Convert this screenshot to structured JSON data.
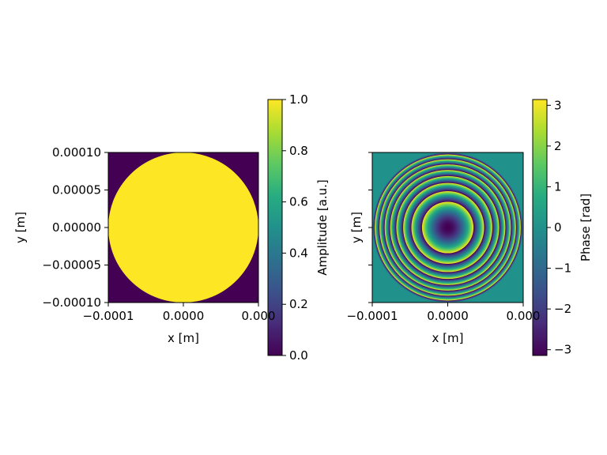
{
  "chart_data": [
    {
      "type": "heatmap",
      "title": "",
      "xlabel": "x [m]",
      "ylabel": "y [m]",
      "xlim": [
        -0.0001,
        0.0001
      ],
      "ylim": [
        -0.0001,
        0.0001
      ],
      "x_ticks": [
        {
          "value": -0.0001,
          "label": "−0.0001"
        },
        {
          "value": 0.0,
          "label": "0.0000"
        },
        {
          "value": 0.0001,
          "label": "0.000"
        }
      ],
      "y_ticks": [
        {
          "value": -0.0001,
          "label": "−0.00010"
        },
        {
          "value": -5e-05,
          "label": "−0.00005"
        },
        {
          "value": 0.0,
          "label": "0.00000"
        },
        {
          "value": 5e-05,
          "label": "0.00005"
        },
        {
          "value": 0.0001,
          "label": "0.00010"
        }
      ],
      "pattern": "circular aperture",
      "aperture_radius": 0.0001,
      "value_inside": 1.0,
      "value_outside": 0.0,
      "colormap": "viridis",
      "colorbar": {
        "label": "Amplitude [a.u.]",
        "range": [
          0.0,
          1.0
        ],
        "ticks": [
          {
            "value": 0.0,
            "label": "0.0"
          },
          {
            "value": 0.2,
            "label": "0.2"
          },
          {
            "value": 0.4,
            "label": "0.4"
          },
          {
            "value": 0.6,
            "label": "0.6"
          },
          {
            "value": 0.8,
            "label": "0.8"
          },
          {
            "value": 1.0,
            "label": "1.0"
          }
        ]
      }
    },
    {
      "type": "heatmap",
      "title": "",
      "xlabel": "x [m]",
      "ylabel": "y [m]",
      "xlim": [
        -0.0001,
        0.0001
      ],
      "ylim": [
        -0.0001,
        0.0001
      ],
      "x_ticks": [
        {
          "value": -0.0001,
          "label": "−0.0001"
        },
        {
          "value": 0.0,
          "label": "0.0000"
        },
        {
          "value": 0.0001,
          "label": "0.000"
        }
      ],
      "y_ticks": [
        {
          "value": -0.0001,
          "label": ""
        },
        {
          "value": -5e-05,
          "label": ""
        },
        {
          "value": 0.0,
          "label": ""
        },
        {
          "value": 5e-05,
          "label": ""
        },
        {
          "value": 0.0001,
          "label": ""
        }
      ],
      "pattern": "quadratic phase (lens) wrapped to [-pi, pi] inside circular aperture",
      "aperture_radius": 0.0001,
      "phase_wraps": 8.5,
      "value_outside": 0.0,
      "colormap": "viridis",
      "colorbar": {
        "label": "Phase [rad]",
        "range": [
          -3.14159,
          3.14159
        ],
        "ticks": [
          {
            "value": -3,
            "label": "−3"
          },
          {
            "value": -2,
            "label": "−2"
          },
          {
            "value": -1,
            "label": "−1"
          },
          {
            "value": 0,
            "label": "0"
          },
          {
            "value": 1,
            "label": "1"
          },
          {
            "value": 2,
            "label": "2"
          },
          {
            "value": 3,
            "label": "3"
          }
        ]
      }
    }
  ]
}
